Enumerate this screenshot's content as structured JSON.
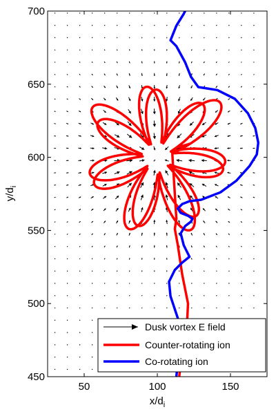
{
  "chart_data": {
    "type": "line",
    "xlabel": "x/d",
    "xlabel_sub": "i",
    "ylabel": "y/d",
    "ylabel_sub": "i",
    "xlim": [
      25,
      175
    ],
    "ylim": [
      450,
      700
    ],
    "xticks": [
      50,
      100,
      150
    ],
    "yticks": [
      450,
      500,
      550,
      600,
      650,
      700
    ],
    "grid": false,
    "legend_position": "bottom-right",
    "legend": [
      {
        "label": "Dusk vortex E field",
        "style": "arrow",
        "color": "#000000"
      },
      {
        "label": "Counter-rotating ion",
        "style": "line",
        "color": "#ff0000"
      },
      {
        "label": "Co-rotating ion",
        "style": "line",
        "color": "#0000ff"
      }
    ],
    "vector_field": {
      "name": "Dusk vortex E field",
      "center": [
        100,
        600
      ],
      "x_start": 30,
      "x_step": 8.5,
      "x_count": 17,
      "y_start": 455,
      "y_step": 8.4,
      "y_count": 30,
      "peak_radius": 20,
      "max_length": 9,
      "color": "#000000"
    },
    "series": [
      {
        "name": "Counter-rotating ion",
        "color": "#ff0000",
        "style": "epicycloid",
        "center": [
          100,
          600
        ],
        "petals": 7,
        "outer_radius": 50,
        "inner_radius": 10,
        "tail_x": [
          115,
          116,
          120,
          121,
          117,
          114,
          112,
          113
        ],
        "tail_y": [
          450,
          460,
          480,
          500,
          520,
          540,
          551,
          558
        ]
      },
      {
        "name": "Co-rotating ion",
        "color": "#0000ff",
        "x": [
          113,
          114,
          116,
          114,
          109,
          108,
          112,
          117,
          122,
          118,
          116,
          119,
          123,
          124,
          121,
          116,
          114,
          117,
          122,
          130,
          143,
          154,
          163,
          168,
          169,
          167,
          162,
          153,
          141,
          128,
          123,
          119,
          113,
          109,
          113,
          118,
          119
        ],
        "y": [
          450,
          460,
          475,
          490,
          505,
          515,
          523,
          528,
          532,
          540,
          548,
          553,
          556,
          558,
          560,
          562,
          565,
          568,
          570,
          571,
          576,
          584,
          594,
          602,
          610,
          620,
          630,
          640,
          646,
          648,
          655,
          665,
          676,
          680,
          690,
          698,
          700
        ]
      }
    ]
  }
}
